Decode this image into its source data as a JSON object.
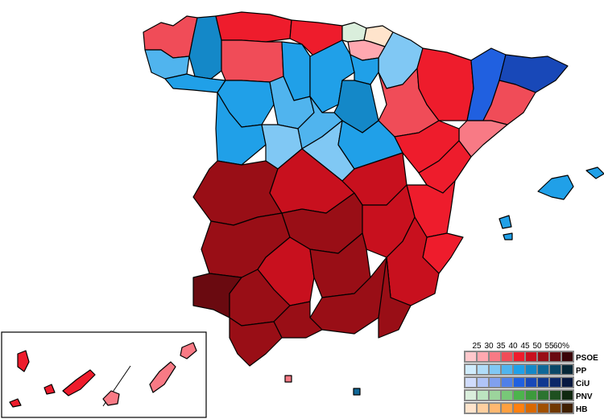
{
  "legend": {
    "ticks": [
      "25",
      "30",
      "35",
      "40",
      "45",
      "50",
      "55",
      "60%"
    ],
    "parties": [
      {
        "name": "PSOE",
        "colors": [
          "#ffc8cc",
          "#ffa8b0",
          "#f87a85",
          "#f04c58",
          "#ee1c2c",
          "#c8101e",
          "#990e16",
          "#6a0a10",
          "#3a0408"
        ]
      },
      {
        "name": "PP",
        "colors": [
          "#d0ecfc",
          "#b0dcf8",
          "#80c8f4",
          "#50b4ee",
          "#20a0e8",
          "#1488c8",
          "#106898",
          "#0a4868",
          "#062838"
        ]
      },
      {
        "name": "CiU",
        "colors": [
          "#d0dcfc",
          "#b0c4f8",
          "#80a0ee",
          "#5080e8",
          "#2060e0",
          "#1848b8",
          "#103890",
          "#0c2868",
          "#061840"
        ]
      },
      {
        "name": "PNV",
        "colors": [
          "#daeedc",
          "#bce4c0",
          "#9cd49c",
          "#78c878",
          "#4cb44c",
          "#3c9a3c",
          "#2c7430",
          "#1e5020",
          "#102810"
        ]
      },
      {
        "name": "HB",
        "colors": [
          "#ffe4cc",
          "#ffd0a0",
          "#ffb870",
          "#ffa040",
          "#ff8010",
          "#d86800",
          "#a05000",
          "#703800",
          "#402000"
        ]
      }
    ]
  }
}
